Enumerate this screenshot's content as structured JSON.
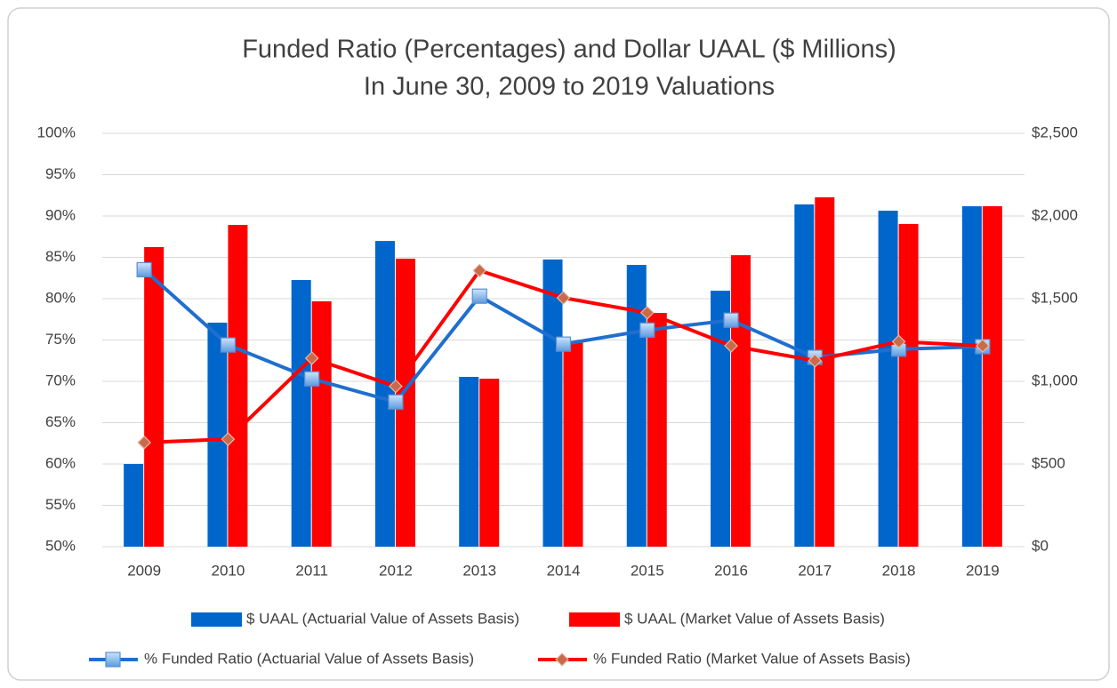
{
  "chart_data": {
    "type": "bar",
    "title": "Funded Ratio (Percentages) and Dollar UAAL ($ Millions)",
    "subtitle": "In June 30, 2009 to 2019 Valuations",
    "categories": [
      "2009",
      "2010",
      "2011",
      "2012",
      "2013",
      "2014",
      "2015",
      "2016",
      "2017",
      "2018",
      "2019"
    ],
    "ylim": [
      50,
      100
    ],
    "yticks": [
      {
        "value": 50,
        "label": "50%"
      },
      {
        "value": 55,
        "label": "55%"
      },
      {
        "value": 60,
        "label": "60%"
      },
      {
        "value": 65,
        "label": "65%"
      },
      {
        "value": 70,
        "label": "70%"
      },
      {
        "value": 75,
        "label": "75%"
      },
      {
        "value": 80,
        "label": "80%"
      },
      {
        "value": 85,
        "label": "85%"
      },
      {
        "value": 90,
        "label": "90%"
      },
      {
        "value": 95,
        "label": "95%"
      },
      {
        "value": 100,
        "label": "100%"
      }
    ],
    "y2lim": [
      0,
      2500
    ],
    "y2ticks": [
      {
        "value": 0,
        "label": "$0"
      },
      {
        "value": 500,
        "label": "$500"
      },
      {
        "value": 1000,
        "label": "$1,000"
      },
      {
        "value": 1500,
        "label": "$1,500"
      },
      {
        "value": 2000,
        "label": "$2,000"
      },
      {
        "value": 2500,
        "label": "$2,500"
      }
    ],
    "grid": true,
    "legend": "bottom",
    "series": [
      {
        "name": "$ UAAL (Actuarial Value of Assets Basis)",
        "type": "bar",
        "axis": "y2",
        "color": "#0066cc",
        "values": [
          500,
          1355,
          1613,
          1849,
          1027,
          1737,
          1704,
          1548,
          2070,
          2032,
          2059
        ]
      },
      {
        "name": "$ UAAL (Market Value of Assets Basis)",
        "type": "bar",
        "axis": "y2",
        "color": "#ff0000",
        "values": [
          1812,
          1946,
          1484,
          1742,
          1016,
          1237,
          1414,
          1763,
          2113,
          1952,
          2059
        ]
      },
      {
        "name": "% Funded Ratio (Actuarial Value of Assets Basis)",
        "type": "line",
        "color": "#1f6fcf",
        "marker": "square",
        "values": [
          83.5,
          74.4,
          70.3,
          67.5,
          80.3,
          74.5,
          76.2,
          77.4,
          72.9,
          73.9,
          74.2
        ]
      },
      {
        "name": "% Funded Ratio (Market Value of Assets Basis)",
        "type": "line",
        "color": "#ff0000",
        "marker": "diamond",
        "values": [
          62.6,
          63.0,
          72.8,
          69.4,
          83.4,
          80.1,
          78.3,
          74.3,
          72.5,
          74.8,
          74.3
        ]
      }
    ]
  }
}
